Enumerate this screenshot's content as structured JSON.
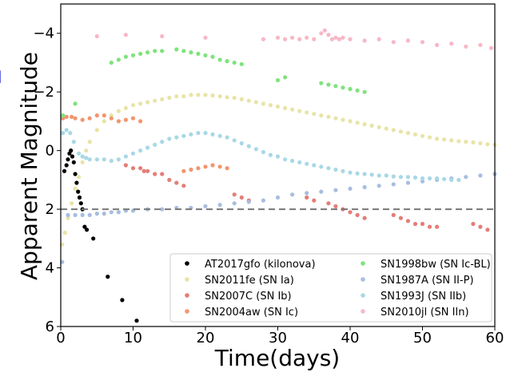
{
  "chart_data": {
    "type": "scatter",
    "xlabel": "Time(days)",
    "ylabel": "Apparent Magnitude",
    "xlim": [
      0,
      60
    ],
    "ylim": [
      6,
      -5
    ],
    "y_inverted": true,
    "xticks": [
      0,
      10,
      20,
      30,
      40,
      50,
      60
    ],
    "xtick_labels": [
      "0",
      "10",
      "20",
      "30",
      "40",
      "50",
      "60"
    ],
    "yticks": [
      -4,
      -2,
      0,
      2,
      4,
      6
    ],
    "ytick_labels": [
      "−4",
      "−2",
      "0",
      "2",
      "4",
      "6"
    ],
    "reference_line": {
      "y": 2,
      "style": "dashed",
      "color": "#777777"
    },
    "legend_position": "lower-right",
    "grid": false,
    "left_edge_glyph": "l",
    "series": [
      {
        "name": "AT2017gfo (kilonova)",
        "color": "#000000",
        "x": [
          0.5,
          0.8,
          1.0,
          1.2,
          1.4,
          1.6,
          1.8,
          2.0,
          2.2,
          2.4,
          2.6,
          2.8,
          3.0,
          3.3,
          3.6,
          4.5,
          6.5,
          8.5,
          10.5
        ],
        "y": [
          0.7,
          0.5,
          0.3,
          0.1,
          0.0,
          0.2,
          0.4,
          0.8,
          1.1,
          1.4,
          1.6,
          1.8,
          2.0,
          2.6,
          2.7,
          3.0,
          4.3,
          5.1,
          5.8
        ]
      },
      {
        "name": "SN2011fe (SN Ia)",
        "color": "#e8e4a8",
        "x": [
          0.2,
          0.6,
          1.0,
          1.5,
          2.0,
          2.5,
          3.0,
          3.5,
          4.0,
          5.0,
          6.0,
          7.0,
          8.0,
          9.0,
          10.0,
          11.0,
          12.0,
          13.0,
          14.0,
          15.0,
          16.0,
          17.0,
          18.0,
          19.0,
          20.0,
          21.0,
          22.0,
          23.0,
          24.0,
          25.0,
          26.0,
          27.0,
          28.0,
          29.0,
          30.0,
          31.0,
          32.0,
          33.0,
          34.0,
          35.0,
          36.0,
          37.0,
          38.0,
          39.0,
          40.0,
          41.0,
          42.0,
          43.0,
          44.0,
          45.0,
          46.0,
          47.0,
          48.0,
          49.0,
          50.0,
          51.0,
          52.0,
          53.0,
          54.0,
          55.0,
          56.0,
          57.0,
          58.0,
          59.0,
          60.0
        ],
        "y": [
          3.2,
          2.8,
          2.3,
          1.8,
          1.3,
          0.9,
          0.4,
          0.0,
          -0.3,
          -0.7,
          -1.0,
          -1.2,
          -1.35,
          -1.45,
          -1.55,
          -1.6,
          -1.65,
          -1.7,
          -1.75,
          -1.8,
          -1.85,
          -1.85,
          -1.9,
          -1.9,
          -1.9,
          -1.88,
          -1.85,
          -1.82,
          -1.8,
          -1.75,
          -1.7,
          -1.65,
          -1.6,
          -1.55,
          -1.5,
          -1.45,
          -1.4,
          -1.35,
          -1.3,
          -1.25,
          -1.2,
          -1.15,
          -1.1,
          -1.05,
          -1.0,
          -0.95,
          -0.9,
          -0.85,
          -0.8,
          -0.75,
          -0.7,
          -0.65,
          -0.6,
          -0.55,
          -0.5,
          -0.45,
          -0.4,
          -0.38,
          -0.35,
          -0.32,
          -0.3,
          -0.28,
          -0.25,
          -0.22,
          -0.2
        ]
      },
      {
        "name": "SN2007C (SN Ib)",
        "color": "#e57d77",
        "x": [
          9.0,
          10.0,
          11.0,
          11.5,
          12.0,
          13.0,
          14.0,
          15.0,
          16.0,
          17.0,
          24.0,
          25.0,
          26.0,
          34.0,
          35.0,
          37.0,
          38.0,
          39.0,
          40.0,
          41.0,
          42.0,
          46.0,
          47.0,
          48.0,
          49.0,
          50.0,
          51.0,
          52.0,
          57.0,
          58.0,
          59.0
        ],
        "y": [
          0.5,
          0.6,
          0.6,
          0.7,
          0.7,
          0.8,
          0.8,
          1.0,
          1.1,
          1.2,
          1.5,
          1.6,
          1.7,
          1.6,
          1.7,
          1.8,
          1.9,
          2.0,
          2.1,
          2.2,
          2.3,
          2.2,
          2.3,
          2.4,
          2.5,
          2.5,
          2.6,
          2.6,
          2.5,
          2.6,
          2.7
        ]
      },
      {
        "name": "SN2004aw (SN Ic)",
        "color": "#f3956e",
        "x": [
          0.3,
          0.8,
          1.5,
          2.0,
          3.0,
          4.0,
          5.0,
          6.0,
          7.0,
          8.0,
          9.0,
          10.0,
          11.0,
          17.0,
          18.0,
          19.0,
          20.0,
          21.0,
          22.0,
          23.0
        ],
        "y": [
          -1.1,
          -1.15,
          -1.15,
          -1.1,
          -1.05,
          -1.1,
          -1.2,
          -1.2,
          -1.1,
          -1.0,
          -1.05,
          -1.1,
          -1.0,
          0.7,
          0.65,
          0.6,
          0.55,
          0.5,
          0.55,
          0.6
        ]
      },
      {
        "name": "SN1998bw (SN Ic-BL)",
        "color": "#7fe37d",
        "x": [
          0.3,
          2.0,
          7.0,
          8.0,
          9.0,
          10.0,
          11.0,
          12.0,
          13.0,
          14.0,
          16.0,
          17.0,
          18.0,
          19.0,
          20.0,
          21.0,
          22.0,
          23.0,
          24.0,
          25.0,
          30.0,
          31.0,
          36.0,
          37.0,
          38.0,
          39.0,
          40.0,
          41.0,
          42.0
        ],
        "y": [
          -1.2,
          -1.6,
          -3.0,
          -3.1,
          -3.2,
          -3.25,
          -3.3,
          -3.35,
          -3.4,
          -3.4,
          -3.45,
          -3.4,
          -3.35,
          -3.3,
          -3.25,
          -3.2,
          -3.1,
          -3.05,
          -3.0,
          -2.95,
          -2.4,
          -2.5,
          -2.3,
          -2.25,
          -2.2,
          -2.15,
          -2.1,
          -2.05,
          -2.0
        ]
      },
      {
        "name": "SN1987A (SN II-P)",
        "color": "#a8bde0",
        "x": [
          0.2,
          1.0,
          2.0,
          3.0,
          4.0,
          5.0,
          6.0,
          7.0,
          8.0,
          9.0,
          10.0,
          12.0,
          14.0,
          16.0,
          18.0,
          20.0,
          22.0,
          24.0,
          26.0,
          28.0,
          30.0,
          32.0,
          34.0,
          36.0,
          38.0,
          40.0,
          42.0,
          44.0,
          46.0,
          48.0,
          50.0,
          52.0,
          54.0,
          56.0,
          58.0,
          60.0
        ],
        "y": [
          3.8,
          2.2,
          2.2,
          2.2,
          2.2,
          2.15,
          2.15,
          2.1,
          2.1,
          2.05,
          2.05,
          2.0,
          2.0,
          1.95,
          1.95,
          1.9,
          1.85,
          1.8,
          1.75,
          1.7,
          1.6,
          1.5,
          1.45,
          1.4,
          1.35,
          1.3,
          1.25,
          1.2,
          1.15,
          1.1,
          1.05,
          1.0,
          0.95,
          0.9,
          0.85,
          0.8
        ]
      },
      {
        "name": "SN1993J (SN IIb)",
        "color": "#a8d8e6",
        "x": [
          0.3,
          0.8,
          1.3,
          1.8,
          2.5,
          3.0,
          3.5,
          4.0,
          5.0,
          6.0,
          7.0,
          8.0,
          9.0,
          10.0,
          11.0,
          12.0,
          13.0,
          14.0,
          15.0,
          16.0,
          17.0,
          18.0,
          19.0,
          20.0,
          21.0,
          22.0,
          23.0,
          24.0,
          25.0,
          26.0,
          27.0,
          28.0,
          29.0,
          30.0,
          31.0,
          32.0,
          33.0,
          34.0,
          35.0,
          36.0,
          37.0,
          38.0,
          39.0,
          40.0,
          41.0,
          42.0,
          43.0,
          44.0,
          45.0,
          46.0,
          47.0,
          48.0,
          49.0,
          50.0,
          51.0,
          52.0,
          53.0,
          54.0,
          55.0
        ],
        "y": [
          -0.6,
          -0.7,
          -0.6,
          -0.3,
          0.1,
          0.2,
          0.25,
          0.3,
          0.3,
          0.3,
          0.35,
          0.3,
          0.2,
          0.1,
          0.0,
          -0.1,
          -0.2,
          -0.3,
          -0.4,
          -0.45,
          -0.5,
          -0.55,
          -0.6,
          -0.6,
          -0.55,
          -0.5,
          -0.45,
          -0.35,
          -0.25,
          -0.15,
          -0.05,
          0.05,
          0.15,
          0.2,
          0.3,
          0.35,
          0.4,
          0.45,
          0.5,
          0.55,
          0.6,
          0.65,
          0.7,
          0.75,
          0.78,
          0.8,
          0.82,
          0.85,
          0.85,
          0.88,
          0.9,
          0.9,
          0.92,
          0.95,
          0.95,
          0.95,
          0.97,
          1.0,
          1.0
        ]
      },
      {
        "name": "SN2010jl (SN IIn)",
        "color": "#f7b8c6",
        "x": [
          5.0,
          9.0,
          14.0,
          20.0,
          28.0,
          30.0,
          31.0,
          32.0,
          33.0,
          34.0,
          35.0,
          36.0,
          36.5,
          37.0,
          37.5,
          38.0,
          38.5,
          39.0,
          40.0,
          42.0,
          44.0,
          46.0,
          48.0,
          50.0,
          52.0,
          54.0,
          56.0,
          58.0,
          59.5
        ],
        "y": [
          -3.9,
          -3.95,
          -3.9,
          -3.85,
          -3.8,
          -3.85,
          -3.8,
          -3.85,
          -3.8,
          -3.85,
          -3.8,
          -4.0,
          -4.1,
          -3.95,
          -3.8,
          -3.85,
          -3.8,
          -3.85,
          -3.8,
          -3.75,
          -3.8,
          -3.7,
          -3.75,
          -3.7,
          -3.6,
          -3.65,
          -3.55,
          -3.6,
          -3.5
        ]
      }
    ]
  }
}
